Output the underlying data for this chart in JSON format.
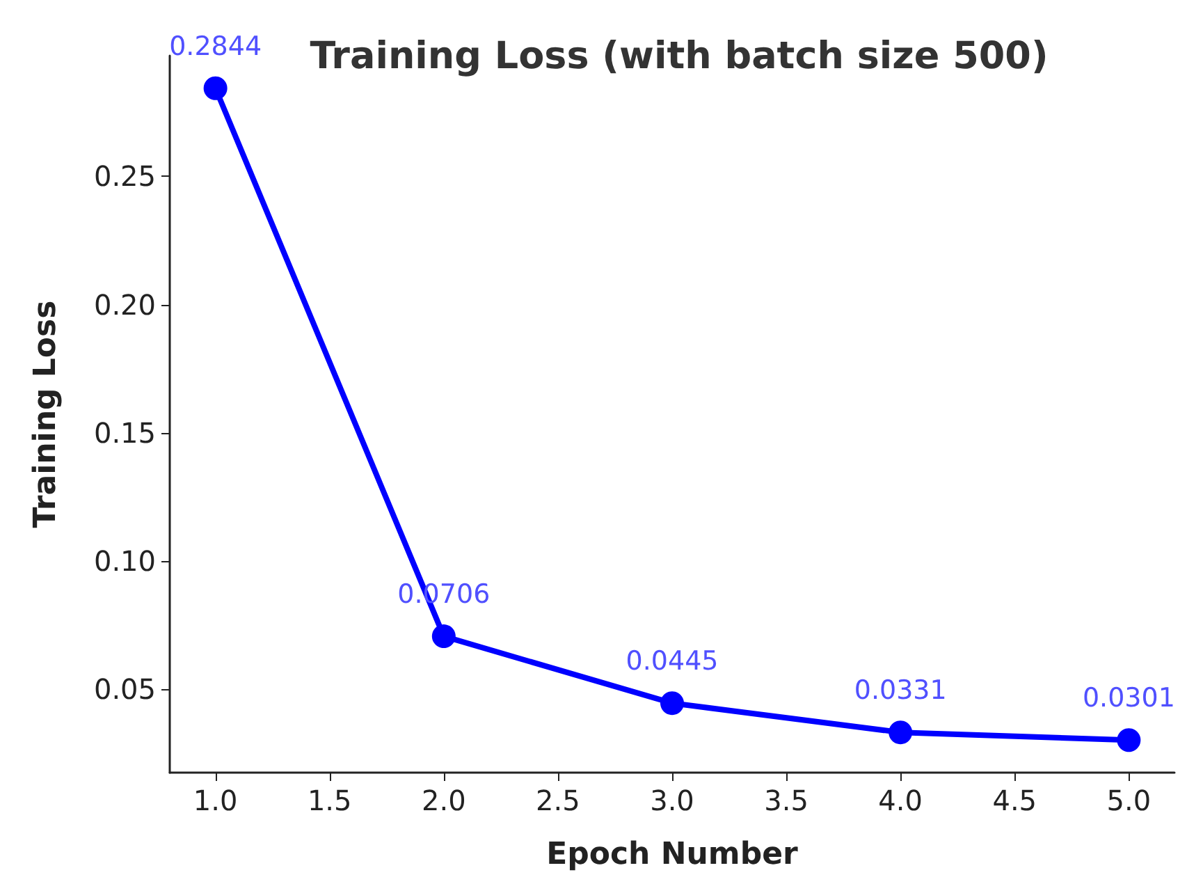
{
  "chart_data": {
    "type": "line",
    "title": "Training Loss (with batch size 500)",
    "xlabel": "Epoch Number",
    "ylabel": "Training Loss",
    "x": [
      1,
      2,
      3,
      4,
      5
    ],
    "series": [
      {
        "color": "#0000ff",
        "values": [
          0.2844,
          0.0706,
          0.0445,
          0.0331,
          0.0301
        ]
      }
    ],
    "xlim": [
      0.8,
      5.2
    ],
    "xticks": [
      {
        "value": 1,
        "label": "1.0"
      },
      {
        "value": 1.5,
        "label": "1.5"
      },
      {
        "value": 2,
        "label": "2.0"
      },
      {
        "value": 2.5,
        "label": "2.5"
      },
      {
        "value": 3,
        "label": "3.0"
      },
      {
        "value": 3.5,
        "label": "3.5"
      },
      {
        "value": 4,
        "label": "4.0"
      },
      {
        "value": 4.5,
        "label": "4.5"
      },
      {
        "value": 5,
        "label": "5.0"
      }
    ],
    "ylim": [
      0.0174,
      0.2971
    ],
    "yticks": [
      {
        "value": 0.05,
        "label": "0.05"
      },
      {
        "value": 0.1,
        "label": "0.10"
      },
      {
        "value": 0.15,
        "label": "0.15"
      },
      {
        "value": 0.2,
        "label": "0.20"
      },
      {
        "value": 0.25,
        "label": "0.25"
      }
    ],
    "grid": false,
    "marker": "circle",
    "line_style": "solid",
    "data_labels": true
  }
}
